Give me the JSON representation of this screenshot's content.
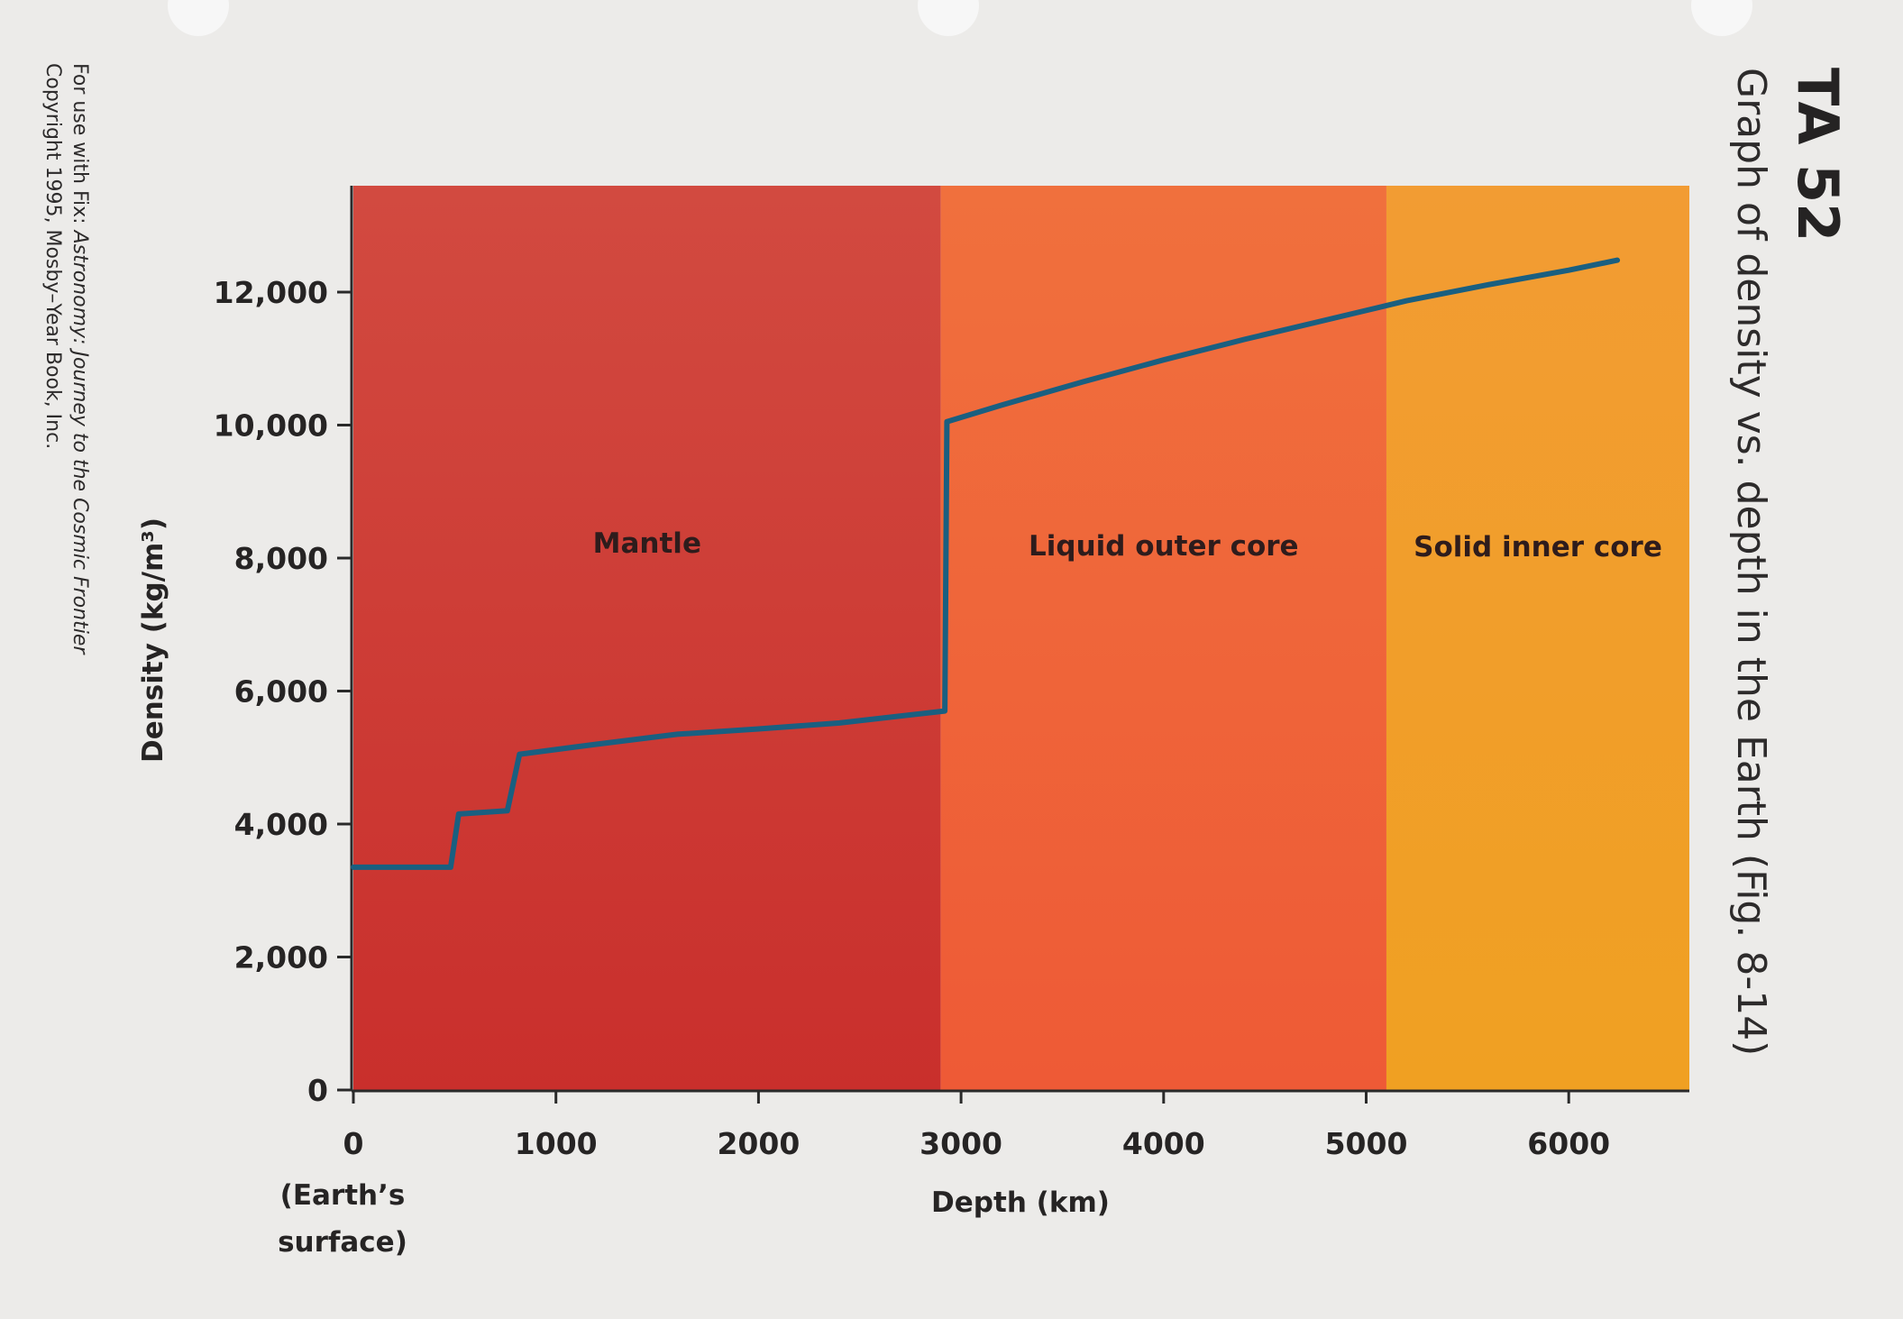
{
  "header": {
    "title": "TA 52",
    "subtitle": "Graph of density vs. depth in the Earth (Fig. 8-14)"
  },
  "credits": {
    "line1_prefix": "For use with Fix: ",
    "line1_italic": "Astronomy: Journey to the Cosmic Frontier",
    "line2": "Copyright 1995, Mosby–Year Book, Inc."
  },
  "chart_data": {
    "type": "line",
    "xlabel": "Depth (km)",
    "ylabel": "Density (kg/m³)",
    "xlim": [
      0,
      6600
    ],
    "ylim": [
      0,
      13700
    ],
    "x_ticks": [
      {
        "value": 0,
        "label": "0"
      },
      {
        "value": 1000,
        "label": "1000"
      },
      {
        "value": 2000,
        "label": "2000"
      },
      {
        "value": 3000,
        "label": "3000"
      },
      {
        "value": 4000,
        "label": "4000"
      },
      {
        "value": 5000,
        "label": "5000"
      },
      {
        "value": 6000,
        "label": "6000"
      }
    ],
    "x_origin_note": [
      "(Earth’s",
      "surface)"
    ],
    "y_ticks": [
      {
        "value": 0,
        "label": "0"
      },
      {
        "value": 2000,
        "label": "2,000"
      },
      {
        "value": 4000,
        "label": "4,000"
      },
      {
        "value": 6000,
        "label": "6,000"
      },
      {
        "value": 8000,
        "label": "8,000"
      },
      {
        "value": 10000,
        "label": "10,000"
      },
      {
        "value": 12000,
        "label": "12,000"
      }
    ],
    "regions": [
      {
        "label": "Mantle",
        "from": 0,
        "to": 2900,
        "color_top": "#d24a40",
        "color_bottom": "#c92f2c"
      },
      {
        "label": "Liquid outer core",
        "from": 2900,
        "to": 5100,
        "color_top": "#f0703d",
        "color_bottom": "#ee5a36"
      },
      {
        "label": "Solid inner core",
        "from": 5100,
        "to": 6600,
        "color_top": "#f29c33",
        "color_bottom": "#f0a022"
      }
    ],
    "series": [
      {
        "color": "#1a5f80",
        "x": [
          0,
          480,
          520,
          760,
          820,
          1200,
          1600,
          2000,
          2400,
          2920,
          2930,
          3200,
          3600,
          4000,
          4400,
          4800,
          5200,
          5600,
          6000,
          6240
        ],
        "y": [
          3350,
          3350,
          4150,
          4200,
          5050,
          5200,
          5350,
          5430,
          5520,
          5700,
          10050,
          10300,
          10650,
          10980,
          11290,
          11580,
          11870,
          12110,
          12330,
          12480
        ]
      }
    ],
    "grid": false,
    "legend": "none"
  }
}
